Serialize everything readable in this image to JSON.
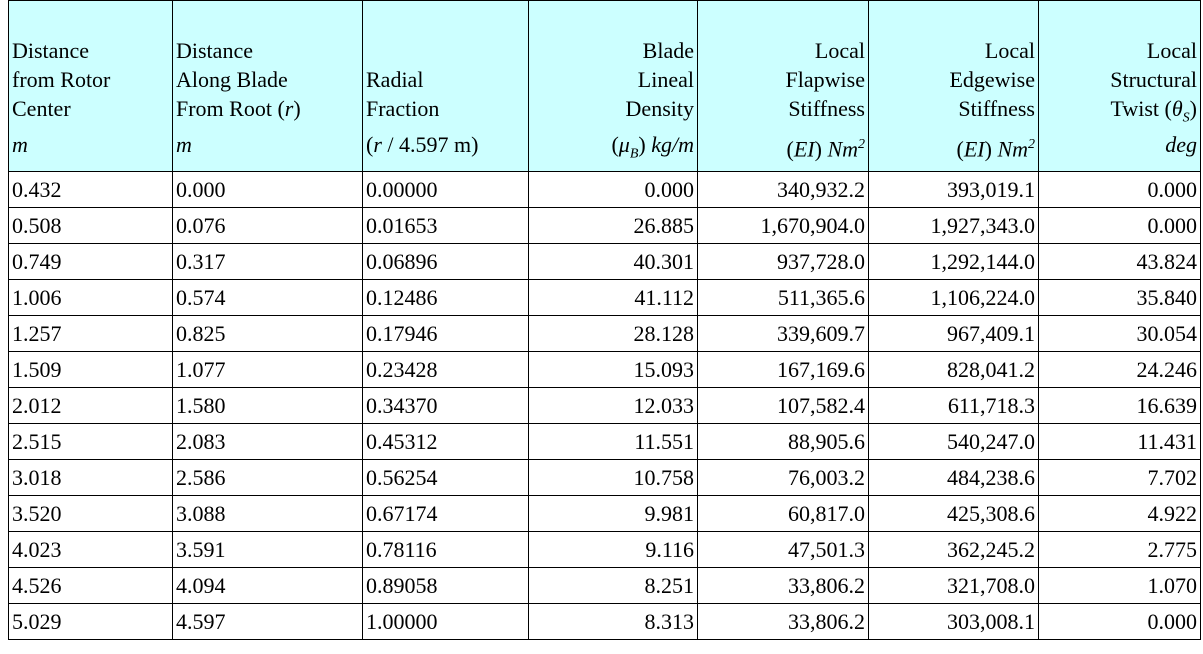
{
  "header": [
    {
      "lines": [
        "Distance",
        "from Rotor",
        "Center"
      ],
      "unit": "m"
    },
    {
      "lines": [
        "Distance",
        "Along Blade",
        [
          "From Root (",
          "r",
          ")"
        ]
      ],
      "unit": "m"
    },
    {
      "lines": [
        "Radial",
        "Fraction"
      ],
      "unit": [
        "(",
        "r",
        " / 4.597 m)"
      ]
    },
    {
      "lines": [
        "Blade",
        "Lineal",
        "Density"
      ],
      "unit": [
        "(",
        "μ",
        "B",
        ") ",
        "kg/m"
      ]
    },
    {
      "lines": [
        "Local",
        "Flapwise",
        "Stiffness"
      ],
      "unit": [
        "(",
        "EI",
        ") ",
        "Nm",
        "2"
      ]
    },
    {
      "lines": [
        "Local",
        "Edgewise",
        "Stiffness"
      ],
      "unit": [
        "(",
        "EI",
        ") ",
        "Nm",
        "2"
      ]
    },
    {
      "lines": [
        "Local",
        "Structural",
        [
          "Twist (",
          "θ",
          "S",
          ")"
        ]
      ],
      "unit": "deg"
    }
  ],
  "rows": [
    [
      "0.432",
      "0.000",
      "0.00000",
      "0.000",
      "340,932.2",
      "393,019.1",
      "0.000"
    ],
    [
      "0.508",
      "0.076",
      "0.01653",
      "26.885",
      "1,670,904.0",
      "1,927,343.0",
      "0.000"
    ],
    [
      "0.749",
      "0.317",
      "0.06896",
      "40.301",
      "937,728.0",
      "1,292,144.0",
      "43.824"
    ],
    [
      "1.006",
      "0.574",
      "0.12486",
      "41.112",
      "511,365.6",
      "1,106,224.0",
      "35.840"
    ],
    [
      "1.257",
      "0.825",
      "0.17946",
      "28.128",
      "339,609.7",
      "967,409.1",
      "30.054"
    ],
    [
      "1.509",
      "1.077",
      "0.23428",
      "15.093",
      "167,169.6",
      "828,041.2",
      "24.246"
    ],
    [
      "2.012",
      "1.580",
      "0.34370",
      "12.033",
      "107,582.4",
      "611,718.3",
      "16.639"
    ],
    [
      "2.515",
      "2.083",
      "0.45312",
      "11.551",
      "88,905.6",
      "540,247.0",
      "11.431"
    ],
    [
      "3.018",
      "2.586",
      "0.56254",
      "10.758",
      "76,003.2",
      "484,238.6",
      "7.702"
    ],
    [
      "3.520",
      "3.088",
      "0.67174",
      "9.981",
      "60,817.0",
      "425,308.6",
      "4.922"
    ],
    [
      "4.023",
      "3.591",
      "0.78116",
      "9.116",
      "47,501.3",
      "362,245.2",
      "2.775"
    ],
    [
      "4.526",
      "4.094",
      "0.89058",
      "8.251",
      "33,806.2",
      "321,708.0",
      "1.070"
    ],
    [
      "5.029",
      "4.597",
      "1.00000",
      "8.313",
      "33,806.2",
      "303,008.1",
      "0.000"
    ]
  ]
}
